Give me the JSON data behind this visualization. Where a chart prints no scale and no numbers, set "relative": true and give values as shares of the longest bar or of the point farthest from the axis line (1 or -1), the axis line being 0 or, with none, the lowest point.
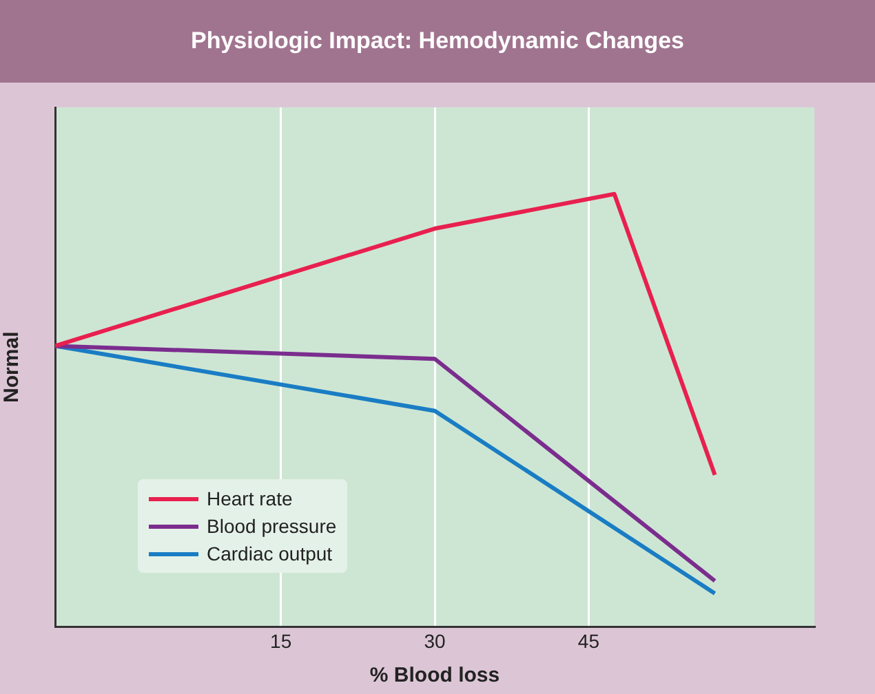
{
  "chart_data": {
    "type": "line",
    "title": "Physiologic Impact: Hemodynamic Changes",
    "xlabel": "% Blood loss",
    "ylabel": "Normal",
    "relative": true,
    "x": [
      -7,
      30,
      57.3
    ],
    "xlim": [
      -7,
      67
    ],
    "xticks": [
      15,
      30,
      45
    ],
    "grid": "x",
    "legend": "bottom left",
    "marker": "none",
    "line_style": "solid",
    "series": [
      {
        "name": "Heart rate",
        "color": "#e8204f",
        "x": [
          -7,
          30,
          47.5,
          57.3
        ],
        "values": [
          0.649,
          0.92,
          1,
          0.351
        ]
      },
      {
        "name": "Blood pressure",
        "color": "#7b2d8e",
        "values": [
          0.649,
          0.619,
          0.106
        ]
      },
      {
        "name": "Cardiac output",
        "color": "#1a7dc4",
        "values": [
          0.649,
          0.499,
          0.077
        ]
      }
    ]
  }
}
